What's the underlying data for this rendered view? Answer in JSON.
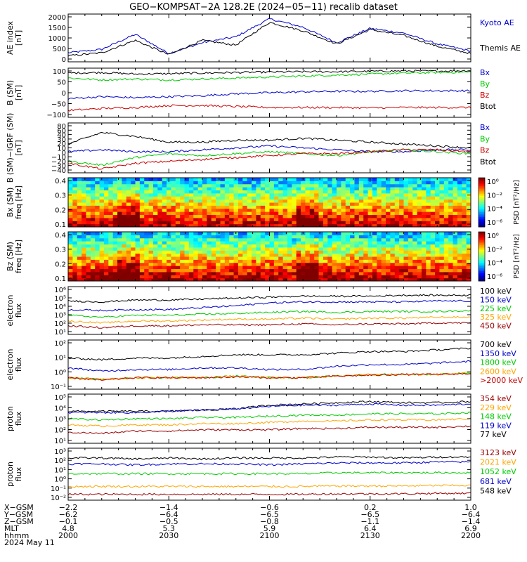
{
  "title": "GEO−KOMPSAT−2A 128.2E (2024−05−11) recalib dataset",
  "colors": {
    "blue": "#0000cc",
    "green": "#00cc00",
    "red": "#cc0000",
    "black": "#000000",
    "orange": "#ffa500",
    "darkred": "#990000",
    "spectrogram": "rainbow/jet"
  },
  "x_axis": {
    "range_hhmm": [
      "2000",
      "2200"
    ],
    "ticks": [
      "2000",
      "2030",
      "2100",
      "2130",
      "2200"
    ],
    "rows": [
      {
        "label": "X−GSM",
        "values": [
          "−2.2",
          "−1.4",
          "−0.6",
          "0.2",
          "1.0"
        ]
      },
      {
        "label": "Y−GSM",
        "values": [
          "−6.2",
          "−6.4",
          "−6.5",
          "−6.5",
          "−6.4"
        ]
      },
      {
        "label": "Z−GSM",
        "values": [
          "−0.1",
          "−0.5",
          "−0.8",
          "−1.1",
          "−1.4"
        ]
      },
      {
        "label": "MLT",
        "values": [
          "4.8",
          "5.3",
          "5.9",
          "6.4",
          "6.9"
        ]
      },
      {
        "label": "hhmm",
        "values": [
          "2000",
          "2030",
          "2100",
          "2130",
          "2200"
        ]
      }
    ],
    "date": "2024 May 11"
  },
  "panels": [
    {
      "id": "ae",
      "ylabel": [
        "AE index",
        "[nT]"
      ],
      "yticks": [
        "0",
        "500",
        "1000",
        "1500",
        "2000"
      ],
      "legend": [
        {
          "text": "Kyoto AE",
          "color": "#0000cc"
        },
        {
          "text": "Themis AE",
          "color": "#000000"
        }
      ]
    },
    {
      "id": "b-sm",
      "ylabel": [
        "B (SM)",
        "[nT]"
      ],
      "yticks": [
        "−100",
        "−50",
        "0",
        "50",
        "100"
      ],
      "legend": [
        {
          "text": "Bx",
          "color": "#0000cc"
        },
        {
          "text": "By",
          "color": "#00cc00"
        },
        {
          "text": "Bz",
          "color": "#cc0000"
        },
        {
          "text": "Btot",
          "color": "#000000"
        }
      ]
    },
    {
      "id": "b-igrf",
      "ylabel": [
        "B (SM)−IGRF (SM)",
        "[nT]"
      ],
      "yticks": [
        "−40",
        "−30",
        "−20",
        "−10",
        "0",
        "10",
        "20",
        "30",
        "40",
        "60",
        "80"
      ],
      "legend": [
        {
          "text": "Bx",
          "color": "#0000cc"
        },
        {
          "text": "By",
          "color": "#00cc00"
        },
        {
          "text": "Bz",
          "color": "#cc0000"
        },
        {
          "text": "Btot",
          "color": "#000000"
        }
      ]
    },
    {
      "id": "bx-spec",
      "ylabel": [
        "Bx (SM)",
        "freq [Hz]"
      ],
      "yticks": [
        "0.1",
        "0.2",
        "0.3",
        "0.4"
      ],
      "colorbar": {
        "title": "PSD [nT²/Hz]",
        "ticks": [
          "10⁰",
          "10⁻²",
          "10⁻⁴",
          "10⁻⁶"
        ]
      }
    },
    {
      "id": "bz-spec",
      "ylabel": [
        "Bz (SM)",
        "freq [Hz]"
      ],
      "yticks": [
        "0.1",
        "0.2",
        "0.3",
        "0.4"
      ],
      "colorbar": {
        "title": "PSD [nT²/Hz]",
        "ticks": [
          "10⁰",
          "10⁻²",
          "10⁻⁴",
          "10⁻⁶"
        ]
      }
    },
    {
      "id": "e-flux-1",
      "ylabel": [
        "electron",
        "flux"
      ],
      "yticks": [
        "10¹",
        "10²",
        "10³",
        "10⁴",
        "10⁵",
        "10⁶"
      ],
      "legend": [
        {
          "text": "100 keV",
          "color": "#000000"
        },
        {
          "text": "150 keV",
          "color": "#0000cc"
        },
        {
          "text": "225 keV",
          "color": "#00cc00"
        },
        {
          "text": "325 keV",
          "color": "#ffa500"
        },
        {
          "text": "450 keV",
          "color": "#990000"
        }
      ]
    },
    {
      "id": "e-flux-2",
      "ylabel": [
        "electron",
        "flux"
      ],
      "yticks": [
        "10⁻¹",
        "10⁰",
        "10¹",
        "10²"
      ],
      "legend": [
        {
          "text": "700 keV",
          "color": "#000000"
        },
        {
          "text": "1350 keV",
          "color": "#0000cc"
        },
        {
          "text": "1800 keV",
          "color": "#00cc00"
        },
        {
          "text": "2600 keV",
          "color": "#ffa500"
        },
        {
          "text": ">2000 keV",
          "color": "#cc0000"
        }
      ]
    },
    {
      "id": "p-flux-1",
      "ylabel": [
        "proton",
        "flux"
      ],
      "yticks": [
        "10¹",
        "10²",
        "10³",
        "10⁴",
        "10⁵"
      ],
      "legend": [
        {
          "text": "354 keV",
          "color": "#990000"
        },
        {
          "text": "229 keV",
          "color": "#ffa500"
        },
        {
          "text": "148 keV",
          "color": "#00cc00"
        },
        {
          "text": "119 keV",
          "color": "#0000cc"
        },
        {
          "text": "77 keV",
          "color": "#000000"
        }
      ]
    },
    {
      "id": "p-flux-2",
      "ylabel": [
        "proton",
        "flux"
      ],
      "yticks": [
        "10⁻²",
        "10⁻¹",
        "10⁰",
        "10¹",
        "10²",
        "10³"
      ],
      "legend": [
        {
          "text": "3123 keV",
          "color": "#990000"
        },
        {
          "text": "2021 keV",
          "color": "#ffa500"
        },
        {
          "text": "1052 keV",
          "color": "#00cc00"
        },
        {
          "text": "681 keV",
          "color": "#0000cc"
        },
        {
          "text": "548 keV",
          "color": "#000000"
        }
      ]
    }
  ],
  "chart_data": [
    {
      "type": "line",
      "panel": "ae",
      "ylim": [
        0,
        2000
      ],
      "x": [
        "2000",
        "2010",
        "2020",
        "2030",
        "2040",
        "2050",
        "2100",
        "2110",
        "2120",
        "2130",
        "2140",
        "2150",
        "2200"
      ],
      "series": [
        {
          "name": "Kyoto AE",
          "values": [
            380,
            520,
            1150,
            350,
            800,
            1050,
            1800,
            1450,
            800,
            1400,
            1200,
            750,
            450
          ]
        },
        {
          "name": "Themis AE",
          "values": [
            250,
            380,
            900,
            300,
            900,
            700,
            1650,
            1300,
            750,
            1350,
            1100,
            650,
            350
          ]
        }
      ]
    },
    {
      "type": "line",
      "panel": "b-sm",
      "ylim": [
        -120,
        130
      ],
      "x": [
        "2000",
        "2010",
        "2020",
        "2030",
        "2040",
        "2050",
        "2100",
        "2110",
        "2120",
        "2130",
        "2140",
        "2150",
        "2200"
      ],
      "series": [
        {
          "name": "Btot",
          "values": [
            105,
            108,
            100,
            102,
            105,
            108,
            110,
            112,
            112,
            114,
            116,
            115,
            118
          ]
        },
        {
          "name": "By",
          "values": [
            80,
            70,
            75,
            70,
            75,
            80,
            85,
            90,
            95,
            100,
            105,
            108,
            110
          ]
        },
        {
          "name": "Bx",
          "values": [
            -25,
            -15,
            -20,
            -15,
            -10,
            0,
            5,
            10,
            12,
            12,
            15,
            15,
            15
          ]
        },
        {
          "name": "Bz",
          "values": [
            -85,
            -75,
            -70,
            -60,
            -60,
            -65,
            -70,
            -70,
            -70,
            -72,
            -70,
            -70,
            -70
          ]
        }
      ]
    },
    {
      "type": "line",
      "panel": "b-igrf",
      "ylim": [
        -50,
        80
      ],
      "x": [
        "2000",
        "2010",
        "2020",
        "2030",
        "2040",
        "2050",
        "2100",
        "2110",
        "2120",
        "2130",
        "2140",
        "2150",
        "2200"
      ],
      "series": [
        {
          "name": "Btot",
          "values": [
            25,
            55,
            45,
            30,
            30,
            35,
            35,
            40,
            35,
            30,
            25,
            20,
            15
          ]
        },
        {
          "name": "Bx",
          "values": [
            5,
            10,
            5,
            5,
            10,
            15,
            20,
            15,
            10,
            5,
            5,
            10,
            10
          ]
        },
        {
          "name": "By",
          "values": [
            -20,
            -30,
            -10,
            0,
            -5,
            0,
            5,
            0,
            -5,
            5,
            10,
            5,
            0
          ]
        },
        {
          "name": "Bz",
          "values": [
            -25,
            -40,
            -25,
            -20,
            -15,
            -10,
            -5,
            0,
            0,
            5,
            10,
            10,
            5
          ]
        }
      ]
    },
    {
      "type": "heatmap",
      "panel": "bx-spec",
      "zscale": "log",
      "zlim": [
        "10⁻⁶",
        "10⁰"
      ],
      "y_range": [
        0.02,
        0.5
      ],
      "description": "power decreases with frequency; bursts near 2020 and 2110"
    },
    {
      "type": "heatmap",
      "panel": "bz-spec",
      "zscale": "log",
      "zlim": [
        "10⁻⁶",
        "10⁰"
      ],
      "y_range": [
        0.02,
        0.5
      ],
      "description": "power decreases with frequency; enhanced near 2020 and 2120"
    },
    {
      "type": "line",
      "panel": "e-flux-1",
      "yscale": "log",
      "ylim_exp": [
        1,
        6
      ],
      "x": [
        "2000",
        "2010",
        "2020",
        "2030",
        "2040",
        "2050",
        "2100",
        "2110",
        "2120",
        "2130",
        "2140",
        "2150",
        "2200"
      ],
      "series": [
        {
          "name": "100 keV",
          "values_log10": [
            4.5,
            4.4,
            4.6,
            4.6,
            4.7,
            4.8,
            4.9,
            5.0,
            5.0,
            5.0,
            5.1,
            5.1,
            5.1
          ]
        },
        {
          "name": "150 keV",
          "values_log10": [
            3.6,
            3.5,
            3.6,
            3.6,
            3.8,
            4.0,
            4.3,
            4.4,
            4.4,
            4.4,
            4.4,
            4.5,
            4.5
          ]
        },
        {
          "name": "225 keV",
          "values_log10": [
            3.0,
            2.8,
            3.0,
            3.0,
            3.1,
            3.2,
            3.3,
            3.4,
            3.3,
            3.4,
            3.4,
            3.4,
            3.5
          ]
        },
        {
          "name": "325 keV",
          "values_log10": [
            2.4,
            2.2,
            2.4,
            2.4,
            2.5,
            2.6,
            2.6,
            2.7,
            2.6,
            2.7,
            2.7,
            2.8,
            2.8
          ]
        },
        {
          "name": "450 keV",
          "values_log10": [
            1.9,
            1.7,
            1.9,
            1.9,
            2.0,
            2.0,
            2.0,
            2.1,
            2.0,
            2.1,
            2.1,
            2.2,
            2.2
          ]
        }
      ]
    },
    {
      "type": "line",
      "panel": "e-flux-2",
      "yscale": "log",
      "ylim_exp": [
        -1,
        2
      ],
      "x": [
        "2000",
        "2010",
        "2020",
        "2030",
        "2040",
        "2050",
        "2100",
        "2110",
        "2120",
        "2130",
        "2140",
        "2150",
        "2200"
      ],
      "series": [
        {
          "name": "700 keV",
          "values_log10": [
            0.9,
            0.8,
            0.9,
            0.9,
            1.0,
            1.1,
            1.1,
            1.1,
            1.2,
            1.3,
            1.3,
            1.4,
            1.5
          ]
        },
        {
          "name": "1350 keV",
          "values_log10": [
            0.3,
            0.1,
            0.2,
            0.2,
            0.3,
            0.3,
            0.2,
            0.2,
            0.4,
            0.5,
            0.5,
            0.6,
            0.7
          ]
        },
        {
          "name": "1800 keV",
          "values_log10": [
            -0.3,
            -0.4,
            -0.3,
            -0.3,
            -0.3,
            -0.2,
            -0.3,
            -0.3,
            -0.2,
            -0.1,
            -0.1,
            -0.1,
            0.0
          ]
        },
        {
          "name": "2600 keV",
          "values_log10": [
            -0.3,
            -0.4,
            -0.3,
            -0.3,
            -0.3,
            -0.2,
            -0.3,
            -0.3,
            -0.2,
            -0.1,
            -0.1,
            -0.1,
            0.0
          ]
        },
        {
          "name": ">2000 keV",
          "values_log10": [
            -0.3,
            -0.45,
            -0.3,
            -0.3,
            -0.3,
            -0.25,
            -0.3,
            -0.3,
            -0.2,
            -0.15,
            -0.1,
            -0.1,
            -0.05
          ]
        }
      ]
    },
    {
      "type": "line",
      "panel": "p-flux-1",
      "yscale": "log",
      "ylim_exp": [
        1,
        5
      ],
      "x": [
        "2000",
        "2010",
        "2020",
        "2030",
        "2040",
        "2050",
        "2100",
        "2110",
        "2120",
        "2130",
        "2140",
        "2150",
        "2200"
      ],
      "series": [
        {
          "name": "77 keV",
          "values_log10": [
            3.6,
            3.6,
            3.6,
            3.6,
            3.7,
            3.8,
            4.1,
            4.2,
            4.3,
            4.4,
            4.3,
            4.3,
            4.4
          ]
        },
        {
          "name": "119 keV",
          "values_log10": [
            3.5,
            3.5,
            3.5,
            3.6,
            3.7,
            3.8,
            4.0,
            4.1,
            4.1,
            4.2,
            4.1,
            4.1,
            4.2
          ]
        },
        {
          "name": "148 keV",
          "values_log10": [
            3.0,
            2.9,
            3.0,
            3.0,
            3.1,
            3.1,
            3.2,
            3.3,
            3.3,
            3.4,
            3.4,
            3.4,
            3.5
          ]
        },
        {
          "name": "229 keV",
          "values_log10": [
            2.5,
            2.4,
            2.5,
            2.5,
            2.6,
            2.6,
            2.7,
            2.8,
            2.8,
            2.9,
            2.9,
            2.9,
            3.0
          ]
        },
        {
          "name": "354 keV",
          "values_log10": [
            1.9,
            1.8,
            2.0,
            2.0,
            2.1,
            2.1,
            2.1,
            2.2,
            2.2,
            2.3,
            2.3,
            2.3,
            2.4
          ]
        }
      ]
    },
    {
      "type": "line",
      "panel": "p-flux-2",
      "yscale": "log",
      "ylim_exp": [
        -2.3,
        3
      ],
      "x": [
        "2000",
        "2010",
        "2020",
        "2030",
        "2040",
        "2050",
        "2100",
        "2110",
        "2120",
        "2130",
        "2140",
        "2150",
        "2200"
      ],
      "series": [
        {
          "name": "548 keV",
          "values_log10": [
            2.0,
            2.0,
            1.9,
            2.0,
            1.9,
            2.0,
            2.0,
            2.0,
            2.1,
            2.1,
            2.0,
            2.1,
            2.1
          ]
        },
        {
          "name": "681 keV",
          "values_log10": [
            1.4,
            1.4,
            1.3,
            1.4,
            1.4,
            1.4,
            1.3,
            1.4,
            1.5,
            1.5,
            1.5,
            1.6,
            1.6
          ]
        },
        {
          "name": "1052 keV",
          "values_log10": [
            0.4,
            0.4,
            0.4,
            0.4,
            0.4,
            0.4,
            0.4,
            0.4,
            0.5,
            0.5,
            0.5,
            0.5,
            0.5
          ]
        },
        {
          "name": "2021 keV",
          "values_log10": [
            -0.9,
            -0.9,
            -0.9,
            -0.9,
            -0.9,
            -0.9,
            -0.9,
            -0.9,
            -0.85,
            -0.85,
            -0.85,
            -0.8,
            -0.8
          ]
        },
        {
          "name": "3123 keV",
          "values_log10": [
            -1.7,
            -1.7,
            -1.7,
            -1.7,
            -1.7,
            -1.7,
            -1.7,
            -1.7,
            -1.65,
            -1.65,
            -1.65,
            -1.6,
            -1.6
          ]
        }
      ]
    }
  ]
}
